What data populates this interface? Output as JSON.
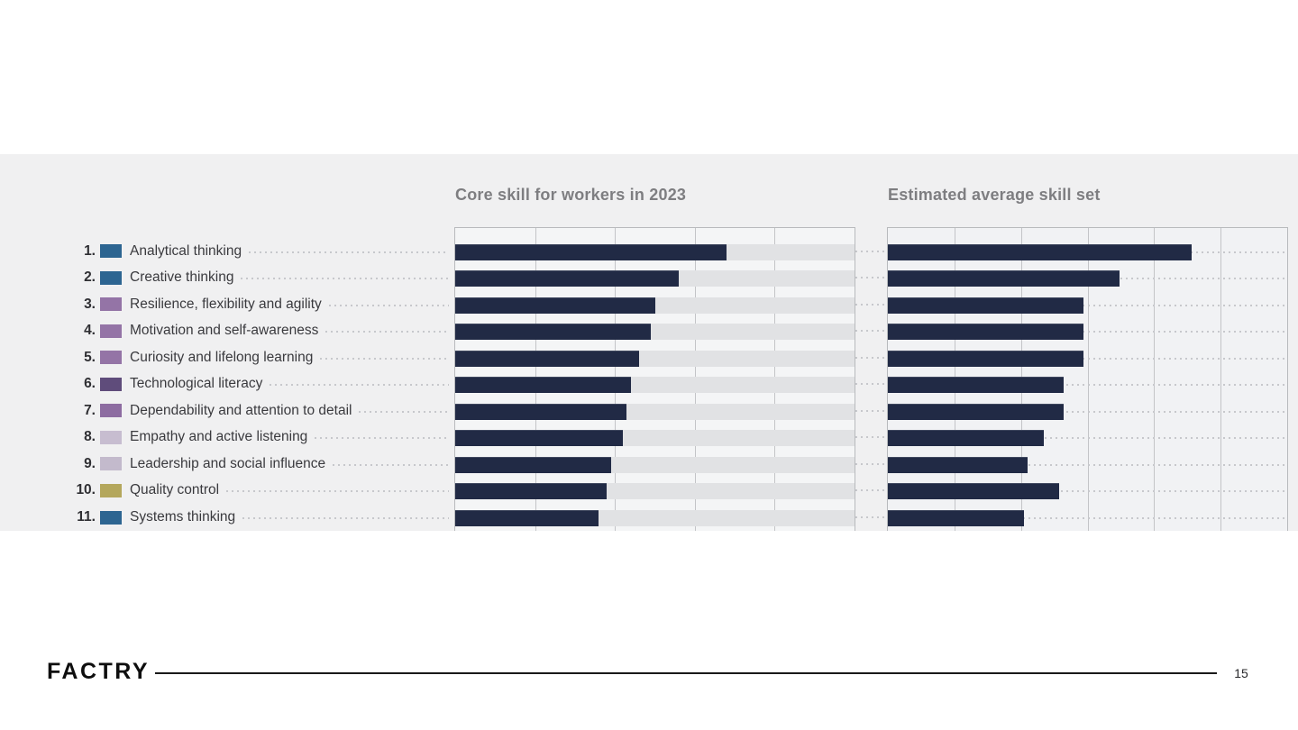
{
  "slide": {
    "logo_text": "FACTRY",
    "page_number": "15"
  },
  "skills": [
    {
      "rank": "1.",
      "label": "Analytical thinking",
      "color": "#2d6591"
    },
    {
      "rank": "2.",
      "label": "Creative thinking",
      "color": "#2d6591"
    },
    {
      "rank": "3.",
      "label": "Resilience, flexibility and agility",
      "color": "#9474a6"
    },
    {
      "rank": "4.",
      "label": "Motivation and self-awareness",
      "color": "#9474a6"
    },
    {
      "rank": "5.",
      "label": "Curiosity and lifelong learning",
      "color": "#9474a6"
    },
    {
      "rank": "6.",
      "label": "Technological literacy",
      "color": "#5f4c7b"
    },
    {
      "rank": "7.",
      "label": "Dependability and attention to detail",
      "color": "#8d6ca1"
    },
    {
      "rank": "8.",
      "label": "Empathy and active listening",
      "color": "#c7bdd0"
    },
    {
      "rank": "9.",
      "label": "Leadership and social influence",
      "color": "#c3bacc"
    },
    {
      "rank": "10.",
      "label": "Quality control",
      "color": "#b4a75c"
    },
    {
      "rank": "11.",
      "label": "Systems thinking",
      "color": "#2d6591"
    }
  ],
  "chart_data": [
    {
      "type": "bar",
      "orientation": "horizontal",
      "title": "Core skill for workers in 2023",
      "categories": [
        "Analytical thinking",
        "Creative thinking",
        "Resilience, flexibility and agility",
        "Motivation and self-awareness",
        "Curiosity and lifelong learning",
        "Technological literacy",
        "Dependability and attention to detail",
        "Empathy and active listening",
        "Leadership and social influence",
        "Quality control",
        "Systems thinking"
      ],
      "values": [
        68,
        56,
        50,
        49,
        46,
        44,
        43,
        42,
        39,
        38,
        36
      ],
      "xlim": [
        0,
        100
      ],
      "gridline_step": 20,
      "axis_tick_labels_visible": false,
      "grid": true,
      "bar_color": "#212a45",
      "track_color": "#e1e2e4",
      "legend_position": "left"
    },
    {
      "type": "bar",
      "orientation": "horizontal",
      "title": "Estimated average skill set",
      "categories": [
        "Analytical thinking",
        "Creative thinking",
        "Resilience, flexibility and agility",
        "Motivation and self-awareness",
        "Curiosity and lifelong learning",
        "Technological literacy",
        "Dependability and attention to detail",
        "Empathy and active listening",
        "Leadership and social influence",
        "Quality control",
        "Systems thinking"
      ],
      "values": [
        76,
        58,
        49,
        49,
        49,
        44,
        44,
        39,
        35,
        43,
        34
      ],
      "values_note": "percent of axis length; axis has 6 unlabeled gridline intervals",
      "xlim": [
        0,
        100
      ],
      "gridline_intervals": 6,
      "axis_tick_labels_visible": false,
      "grid": true,
      "bar_color": "#212a45",
      "legend_position": "left"
    }
  ]
}
